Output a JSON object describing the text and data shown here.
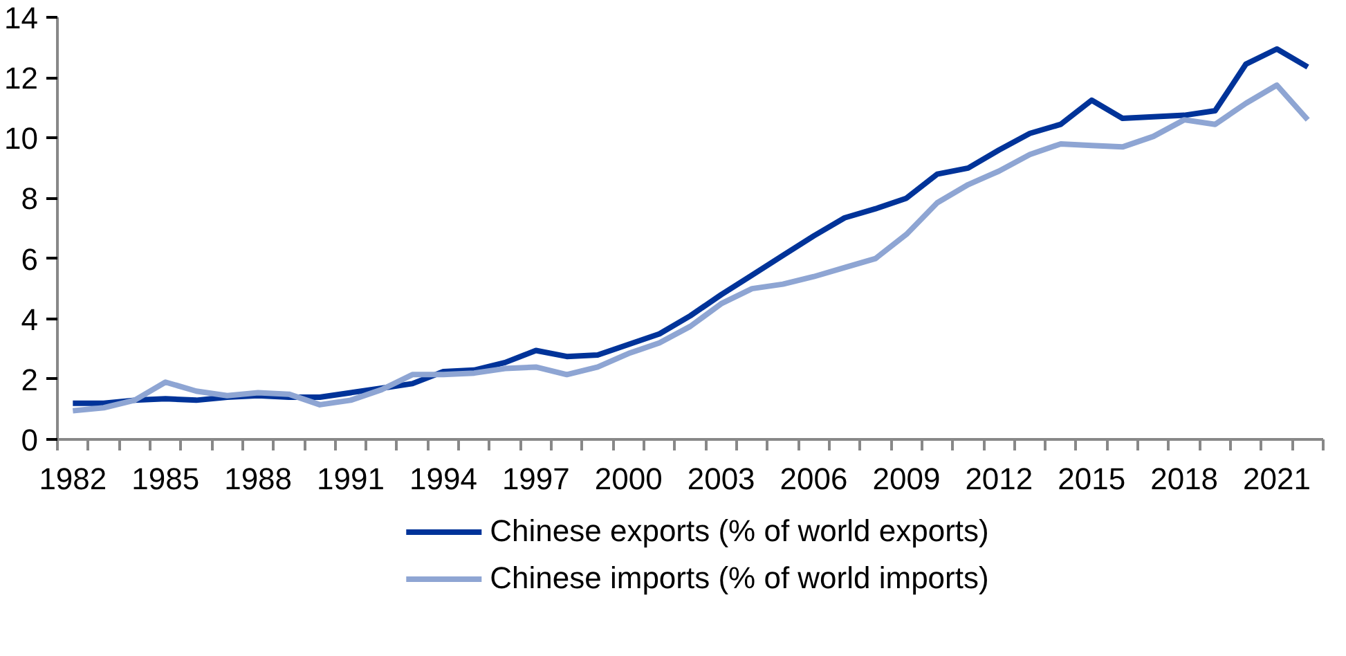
{
  "chart_data": {
    "type": "line",
    "categories": [
      "1982",
      null,
      null,
      "1985",
      null,
      null,
      "1988",
      null,
      null,
      "1991",
      null,
      null,
      "1994",
      null,
      null,
      "1997",
      null,
      null,
      "2000",
      null,
      null,
      "2003",
      null,
      null,
      "2006",
      null,
      null,
      "2009",
      null,
      null,
      "2012",
      null,
      null,
      "2015",
      null,
      null,
      "2018",
      null,
      null,
      "2021",
      null
    ],
    "ylim": [
      0,
      14
    ],
    "yticks": [
      0,
      2,
      4,
      6,
      8,
      10,
      12,
      14
    ],
    "grid": false,
    "legend": "bottom",
    "marker": "none",
    "line_style": "solid",
    "series": [
      {
        "name": "Chinese exports (% of world exports)",
        "color": "#003399",
        "values": [
          1.2,
          1.2,
          1.3,
          1.35,
          1.3,
          1.4,
          1.45,
          1.4,
          1.4,
          1.55,
          1.7,
          1.85,
          2.25,
          2.3,
          2.55,
          2.95,
          2.75,
          2.8,
          3.15,
          3.5,
          4.1,
          4.8,
          5.45,
          6.1,
          6.75,
          7.35,
          7.65,
          8.0,
          8.8,
          9.0,
          9.6,
          10.15,
          10.45,
          11.25,
          10.65,
          10.7,
          10.75,
          10.9,
          12.45,
          12.95,
          12.35
        ]
      },
      {
        "name": "Chinese imports (% of world imports)",
        "color": "#8ea5d3",
        "values": [
          0.95,
          1.05,
          1.3,
          1.9,
          1.6,
          1.45,
          1.55,
          1.5,
          1.15,
          1.3,
          1.65,
          2.15,
          2.15,
          2.2,
          2.35,
          2.4,
          2.15,
          2.4,
          2.85,
          3.2,
          3.75,
          4.5,
          5.0,
          5.15,
          5.4,
          5.7,
          6.0,
          6.8,
          7.85,
          8.45,
          8.9,
          9.45,
          9.8,
          9.75,
          9.7,
          10.05,
          10.6,
          10.45,
          11.15,
          11.75,
          10.6
        ]
      }
    ]
  }
}
